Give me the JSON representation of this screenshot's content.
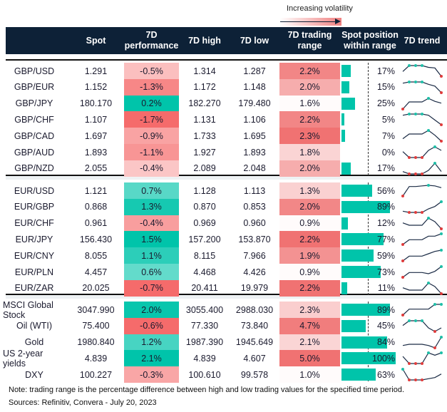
{
  "legend": {
    "label": "Increasing volatility"
  },
  "headers": {
    "spot": "Spot",
    "perf_line1": "7D",
    "perf_line2": "performance",
    "high": "7D high",
    "low": "7D low",
    "range_line1": "7D trading",
    "range_line2": "range",
    "pos_line1": "Spot position",
    "pos_line2": "within range",
    "trend": "7D trend"
  },
  "colors": {
    "header_bg": "#0d2137",
    "positive": "#00c4aa",
    "negative": "#f56b6b",
    "range": "#ef6b6b",
    "bar": "#00c4aa",
    "trend_line": "#1a2a44",
    "high_marker": "#1fbfa8",
    "low_marker": "#e03c3c"
  },
  "groups": [
    {
      "rows": [
        {
          "name": "GBP/USD",
          "spot": "1.291",
          "perf": "-0.5%",
          "high": "1.314",
          "low": "1.287",
          "range": "2.2%",
          "position": "17%",
          "trend": [
            4,
            9,
            9,
            9,
            7.5,
            7,
            0
          ]
        },
        {
          "name": "GBP/EUR",
          "spot": "1.152",
          "perf": "-1.3%",
          "high": "1.172",
          "low": "1.148",
          "range": "2.0%",
          "position": "15%",
          "trend": [
            8,
            9,
            9,
            9,
            7,
            5.5,
            0
          ]
        },
        {
          "name": "GBP/JPY",
          "spot": "180.170",
          "perf": "0.2%",
          "high": "182.270",
          "low": "179.480",
          "range": "1.6%",
          "position": "25%",
          "trend": [
            0,
            6,
            6,
            6,
            9,
            6.5,
            5
          ]
        },
        {
          "name": "GBP/CHF",
          "spot": "1.107",
          "perf": "-1.7%",
          "high": "1.131",
          "low": "1.106",
          "range": "2.2%",
          "position": "5%",
          "trend": [
            8,
            9,
            9,
            9,
            8,
            4,
            0
          ]
        },
        {
          "name": "GBP/CAD",
          "spot": "1.697",
          "perf": "-0.9%",
          "high": "1.733",
          "low": "1.695",
          "range": "2.3%",
          "position": "7%",
          "trend": [
            2,
            6,
            6,
            6,
            9,
            5,
            0
          ]
        },
        {
          "name": "GBP/AUD",
          "spot": "1.893",
          "perf": "-1.1%",
          "high": "1.927",
          "low": "1.893",
          "range": "1.8%",
          "position": "0%",
          "trend": [
            5,
            0,
            0,
            0,
            6,
            9,
            6
          ]
        },
        {
          "name": "GBP/NZD",
          "spot": "2.055",
          "perf": "-0.4%",
          "high": "2.089",
          "low": "2.048",
          "range": "2.0%",
          "position": "17%",
          "trend": [
            2,
            0,
            0,
            0,
            3,
            9,
            2
          ]
        }
      ]
    },
    {
      "rows": [
        {
          "name": "EUR/USD",
          "spot": "1.121",
          "perf": "0.7%",
          "high": "1.128",
          "low": "1.113",
          "range": "1.3%",
          "position": "56%",
          "trend": [
            0,
            8,
            8,
            8.5,
            9,
            8.5,
            7
          ]
        },
        {
          "name": "EUR/GBP",
          "spot": "0.868",
          "perf": "1.3%",
          "high": "0.870",
          "low": "0.853",
          "range": "2.0%",
          "position": "89%",
          "trend": [
            1,
            0,
            0,
            0,
            3,
            5,
            9
          ]
        },
        {
          "name": "EUR/CHF",
          "spot": "0.961",
          "perf": "-0.4%",
          "high": "0.969",
          "low": "0.960",
          "range": "0.9%",
          "position": "12%",
          "trend": [
            5,
            3,
            3,
            3,
            9,
            6,
            0
          ]
        },
        {
          "name": "EUR/JPY",
          "spot": "156.430",
          "perf": "1.5%",
          "high": "157.200",
          "low": "153.870",
          "range": "2.2%",
          "position": "77%",
          "trend": [
            0,
            4,
            4,
            4,
            7,
            7,
            9
          ]
        },
        {
          "name": "EUR/CNY",
          "spot": "8.055",
          "perf": "1.1%",
          "high": "8.115",
          "low": "7.966",
          "range": "1.9%",
          "position": "59%",
          "trend": [
            0,
            4,
            4,
            4,
            6,
            8,
            9
          ]
        },
        {
          "name": "EUR/PLN",
          "spot": "4.457",
          "perf": "0.6%",
          "high": "4.468",
          "low": "4.426",
          "range": "0.9%",
          "position": "73%",
          "trend": [
            0,
            4,
            4,
            4,
            3,
            5,
            9
          ]
        },
        {
          "name": "EUR/ZAR",
          "spot": "20.025",
          "perf": "-0.7%",
          "high": "20.411",
          "low": "19.979",
          "range": "2.2%",
          "position": "11%",
          "trend": [
            5,
            3,
            3,
            3,
            9,
            6,
            0
          ]
        }
      ]
    },
    {
      "rows": [
        {
          "name": "MSCI Global Stock",
          "spot": "3047.990",
          "perf": "2.0%",
          "high": "3055.400",
          "low": "2988.030",
          "range": "2.3%",
          "position": "89%",
          "trend": [
            0,
            5,
            5,
            5,
            5,
            9,
            9
          ]
        },
        {
          "name": "Oil (WTI)",
          "spot": "75.400",
          "perf": "-0.6%",
          "high": "77.330",
          "low": "73.840",
          "range": "4.7%",
          "position": "45%",
          "trend": [
            5,
            9,
            9,
            9,
            3,
            0,
            3
          ]
        },
        {
          "name": "Gold",
          "spot": "1980.840",
          "perf": "1.2%",
          "high": "1987.390",
          "low": "1945.649",
          "range": "2.1%",
          "position": "84%",
          "trend": [
            2,
            3,
            3,
            3,
            2,
            0,
            9
          ]
        },
        {
          "name": "US 2-year yields",
          "spot": "4.839",
          "perf": "2.1%",
          "high": "4.839",
          "low": "4.607",
          "range": "5.0%",
          "position": "100%",
          "trend": [
            6,
            0,
            0,
            0,
            9,
            7,
            9
          ]
        },
        {
          "name": "DXY",
          "spot": "100.227",
          "perf": "-0.3%",
          "high": "100.610",
          "low": "99.578",
          "range": "1.0%",
          "position": "63%",
          "trend": [
            9,
            0,
            0,
            0,
            1,
            2,
            5
          ]
        }
      ]
    }
  ],
  "footer": {
    "note": "Note: trading range is the percentage difference between high and low trading values for the specified time period.",
    "sources": "Sources: Refinitiv, Convera - July 20, 2023"
  }
}
